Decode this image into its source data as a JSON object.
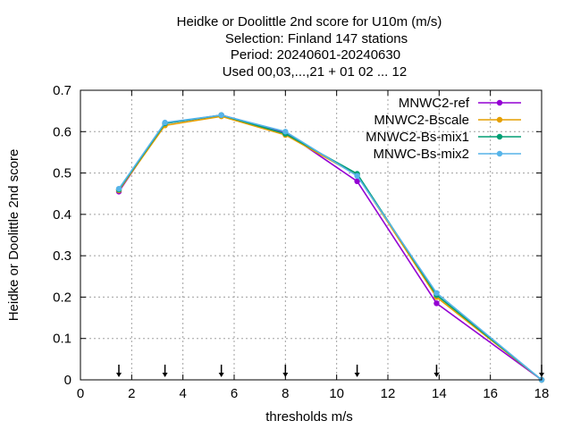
{
  "chart_data": {
    "type": "line",
    "title_lines": [
      "Heidke or Doolittle 2nd score  for U10m (m/s)",
      "Selection: Finland    147 stations",
      "Period: 20240601-20240630",
      "Used 00,03,...,21 + 01 02 ... 12"
    ],
    "xlabel": "thresholds m/s",
    "ylabel": "Heidke or Doolittle 2nd score",
    "xlim": [
      0,
      18
    ],
    "ylim": [
      0,
      0.7
    ],
    "xticks": [
      "0",
      "2",
      "4",
      "6",
      "8",
      "10",
      "12",
      "14",
      "16",
      "18"
    ],
    "yticks": [
      "0",
      "0.1",
      "0.2",
      "0.3",
      "0.4",
      "0.5",
      "0.6",
      "0.7"
    ],
    "grid": true,
    "legend_position": "top-right",
    "arrow_markers_x": [
      1.5,
      3.3,
      5.5,
      8,
      10.8,
      13.9,
      18
    ],
    "x": [
      1.5,
      3.3,
      5.5,
      8,
      10.8,
      13.9,
      18
    ],
    "series": [
      {
        "name": "MNWC2-ref",
        "color": "#9400d3",
        "values": [
          0.455,
          0.62,
          0.64,
          0.598,
          0.48,
          0.185,
          0.0
        ]
      },
      {
        "name": "MNWC2-Bscale",
        "color": "#e69f00",
        "values": [
          0.458,
          0.615,
          0.637,
          0.592,
          0.495,
          0.2,
          0.0
        ]
      },
      {
        "name": "MNWC2-Bs-mix1",
        "color": "#009e73",
        "values": [
          0.46,
          0.62,
          0.64,
          0.595,
          0.498,
          0.205,
          0.0
        ]
      },
      {
        "name": "MNWC-Bs-mix2",
        "color": "#56b4e9",
        "values": [
          0.462,
          0.622,
          0.64,
          0.6,
          0.493,
          0.21,
          0.0
        ]
      }
    ]
  }
}
